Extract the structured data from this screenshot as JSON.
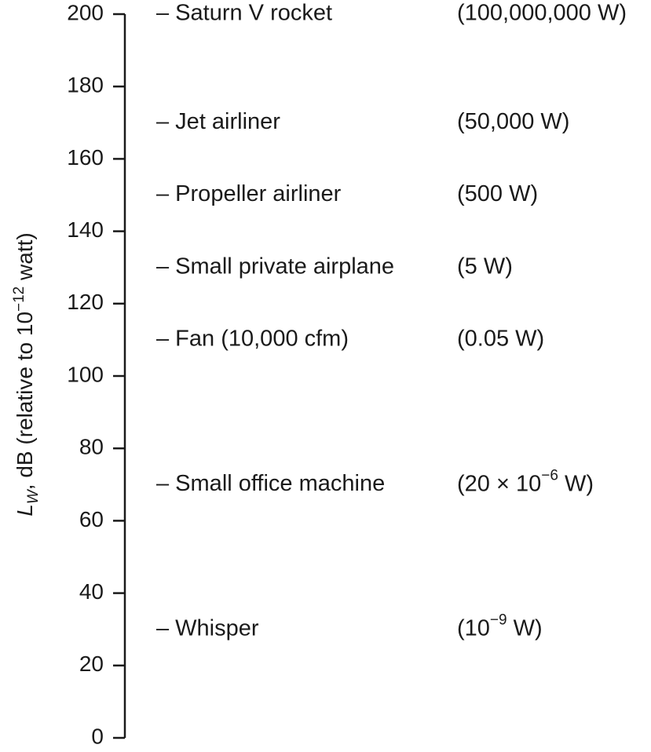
{
  "chart_data": {
    "type": "scale",
    "ylabel": {
      "symbol": "L",
      "subscript": "W",
      "text_before_power": ", dB (relative to 10",
      "exponent": "−12",
      "text_after_power": " watt)"
    },
    "ylim": [
      0,
      200
    ],
    "yticks": [
      0,
      20,
      40,
      60,
      80,
      100,
      120,
      140,
      160,
      180,
      200
    ],
    "items": [
      {
        "label": "– Saturn V rocket",
        "value": 200,
        "power": {
          "text": "(100,000,000 W)"
        }
      },
      {
        "label": "– Jet airliner",
        "value": 170,
        "power": {
          "text": "(50,000 W)"
        }
      },
      {
        "label": "– Propeller airliner",
        "value": 150,
        "power": {
          "text": "(500 W)"
        }
      },
      {
        "label": "– Small private airplane",
        "value": 130,
        "power": {
          "text": "(5 W)"
        }
      },
      {
        "label": "– Fan (10,000 cfm)",
        "value": 110,
        "power": {
          "text": "(0.05 W)"
        }
      },
      {
        "label": "– Small office machine",
        "value": 70,
        "power": {
          "prefix": "(20 × 10",
          "exponent": "−6",
          "suffix": " W)"
        }
      },
      {
        "label": "– Whisper",
        "value": 30,
        "power": {
          "prefix": "(10",
          "exponent": "−9",
          "suffix": " W)"
        }
      }
    ]
  }
}
